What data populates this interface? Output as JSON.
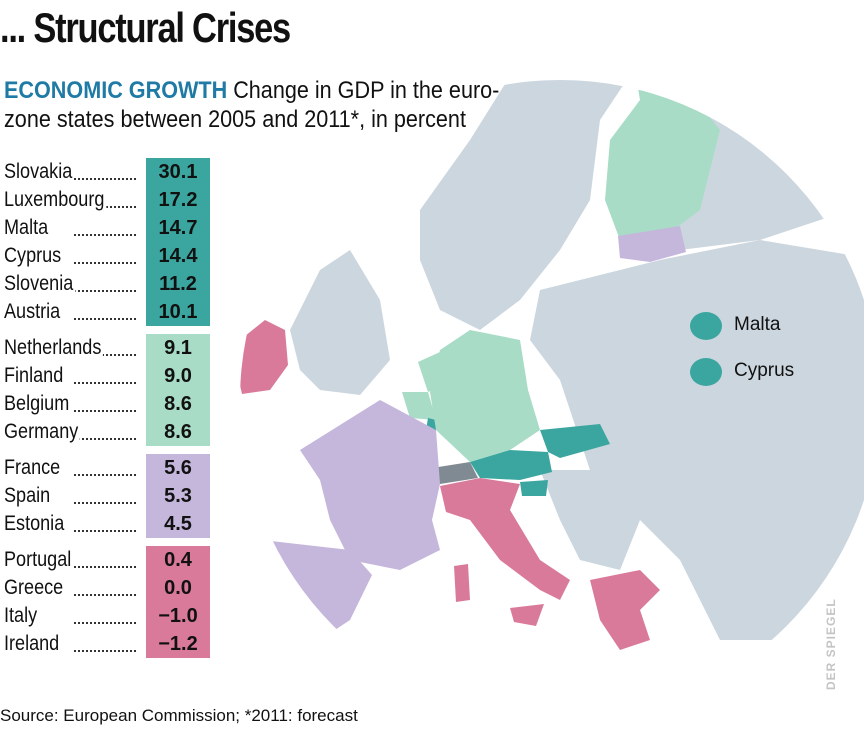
{
  "title": "... Structural Crises",
  "subtitle": {
    "keyword": "ECONOMIC GROWTH",
    "text": "Change in GDP in the euro-zone states between 2005 and 2011*, in percent"
  },
  "table": {
    "groups": [
      {
        "color": "#3ba6a0",
        "rows": [
          {
            "country": "Slovakia",
            "value": "30.1"
          },
          {
            "country": "Luxembourg",
            "value": "17.2"
          },
          {
            "country": "Malta",
            "value": "14.7"
          },
          {
            "country": "Cyprus",
            "value": "14.4"
          },
          {
            "country": "Slovenia",
            "value": "11.2"
          },
          {
            "country": "Austria",
            "value": "10.1"
          }
        ]
      },
      {
        "color": "#a8dcc6",
        "rows": [
          {
            "country": "Netherlands",
            "value": "9.1"
          },
          {
            "country": "Finland",
            "value": "9.0"
          },
          {
            "country": "Belgium",
            "value": "8.6"
          },
          {
            "country": "Germany",
            "value": "8.6"
          }
        ]
      },
      {
        "color": "#c5b6dc",
        "rows": [
          {
            "country": "France",
            "value": "5.6"
          },
          {
            "country": "Spain",
            "value": "5.3"
          },
          {
            "country": "Estonia",
            "value": "4.5"
          }
        ]
      },
      {
        "color": "#d97a9b",
        "rows": [
          {
            "country": "Portugal",
            "value": "0.4"
          },
          {
            "country": "Greece",
            "value": "0.0"
          },
          {
            "country": "Italy",
            "value": "−1.0"
          },
          {
            "country": "Ireland",
            "value": "−1.2"
          }
        ]
      }
    ]
  },
  "legend": [
    {
      "label": "Malta",
      "color": "#3ba6a0"
    },
    {
      "label": "Cyprus",
      "color": "#3ba6a0"
    }
  ],
  "source": "Source: European Commission; *2011: forecast",
  "credit": "DER SPIEGEL",
  "colors": {
    "sea": "#ffffff",
    "land": "#c9d3db",
    "top": "#3ba6a0",
    "high": "#a8dcc6",
    "mid": "#c5b6dc",
    "low": "#d97a9b"
  }
}
